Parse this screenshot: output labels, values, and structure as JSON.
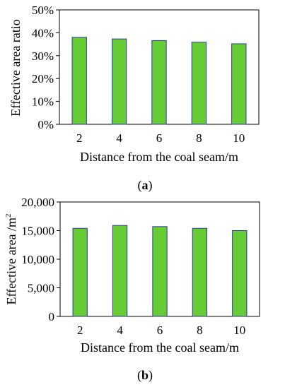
{
  "panel_labels": {
    "a_open": "(",
    "a_letter": "a",
    "a_close": ")",
    "b_open": "(",
    "b_letter": "b",
    "b_close": ")"
  },
  "chart_data": [
    {
      "type": "bar",
      "panel": "a",
      "categories": [
        "2",
        "4",
        "6",
        "8",
        "10"
      ],
      "values": [
        38,
        37.3,
        36.6,
        35.9,
        35.2
      ],
      "ylim": [
        0,
        50
      ],
      "yticks": [
        0,
        10,
        20,
        30,
        40,
        50
      ],
      "ytick_labels": [
        "0%",
        "10%",
        "20%",
        "30%",
        "40%",
        "50%"
      ],
      "xlabel": "Distance from the coal seam/m",
      "ylabel": "Effective area ratio",
      "bar_color": "#66cc33",
      "bar_edge_color": "#3333aa",
      "grid": false
    },
    {
      "type": "bar",
      "panel": "b",
      "categories": [
        "2",
        "4",
        "6",
        "8",
        "10"
      ],
      "values": [
        15400,
        15900,
        15700,
        15400,
        15000
      ],
      "ylim": [
        0,
        20000
      ],
      "yticks": [
        0,
        5000,
        10000,
        15000,
        20000
      ],
      "ytick_labels": [
        "0",
        "5,000",
        "10,000",
        "15,000",
        "20,000"
      ],
      "xlabel": "Distance from the coal seam/m",
      "ylabel_main": "Effective area /m",
      "ylabel_superscript": "2",
      "bar_color": "#66cc33",
      "bar_edge_color": "#3333aa",
      "grid": false
    }
  ]
}
